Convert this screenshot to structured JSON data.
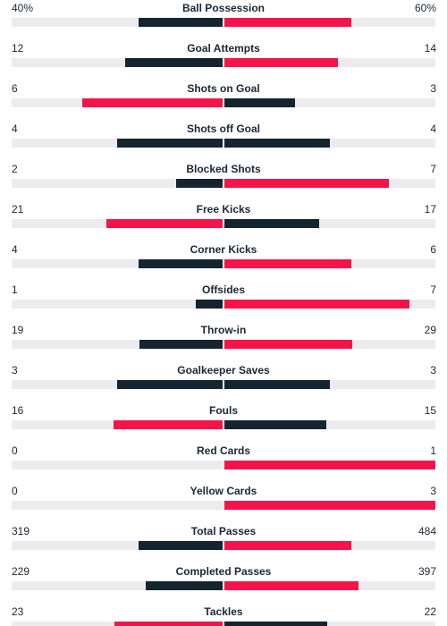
{
  "colors": {
    "leading": "#f5144a",
    "trailing": "#14252f",
    "track": "#ececef"
  },
  "stats": [
    {
      "label": "Ball Possession",
      "home": "40%",
      "away": "60%",
      "home_value": 40,
      "away_value": 60
    },
    {
      "label": "Goal Attempts",
      "home": "12",
      "away": "14",
      "home_value": 12,
      "away_value": 14
    },
    {
      "label": "Shots on Goal",
      "home": "6",
      "away": "3",
      "home_value": 6,
      "away_value": 3
    },
    {
      "label": "Shots off Goal",
      "home": "4",
      "away": "4",
      "home_value": 4,
      "away_value": 4
    },
    {
      "label": "Blocked Shots",
      "home": "2",
      "away": "7",
      "home_value": 2,
      "away_value": 7
    },
    {
      "label": "Free Kicks",
      "home": "21",
      "away": "17",
      "home_value": 21,
      "away_value": 17
    },
    {
      "label": "Corner Kicks",
      "home": "4",
      "away": "6",
      "home_value": 4,
      "away_value": 6
    },
    {
      "label": "Offsides",
      "home": "1",
      "away": "7",
      "home_value": 1,
      "away_value": 7
    },
    {
      "label": "Throw-in",
      "home": "19",
      "away": "29",
      "home_value": 19,
      "away_value": 29
    },
    {
      "label": "Goalkeeper Saves",
      "home": "3",
      "away": "3",
      "home_value": 3,
      "away_value": 3
    },
    {
      "label": "Fouls",
      "home": "16",
      "away": "15",
      "home_value": 16,
      "away_value": 15
    },
    {
      "label": "Red Cards",
      "home": "0",
      "away": "1",
      "home_value": 0,
      "away_value": 1
    },
    {
      "label": "Yellow Cards",
      "home": "0",
      "away": "3",
      "home_value": 0,
      "away_value": 3
    },
    {
      "label": "Total Passes",
      "home": "319",
      "away": "484",
      "home_value": 319,
      "away_value": 484
    },
    {
      "label": "Completed Passes",
      "home": "229",
      "away": "397",
      "home_value": 229,
      "away_value": 397
    },
    {
      "label": "Tackles",
      "home": "23",
      "away": "22",
      "home_value": 23,
      "away_value": 22
    }
  ]
}
